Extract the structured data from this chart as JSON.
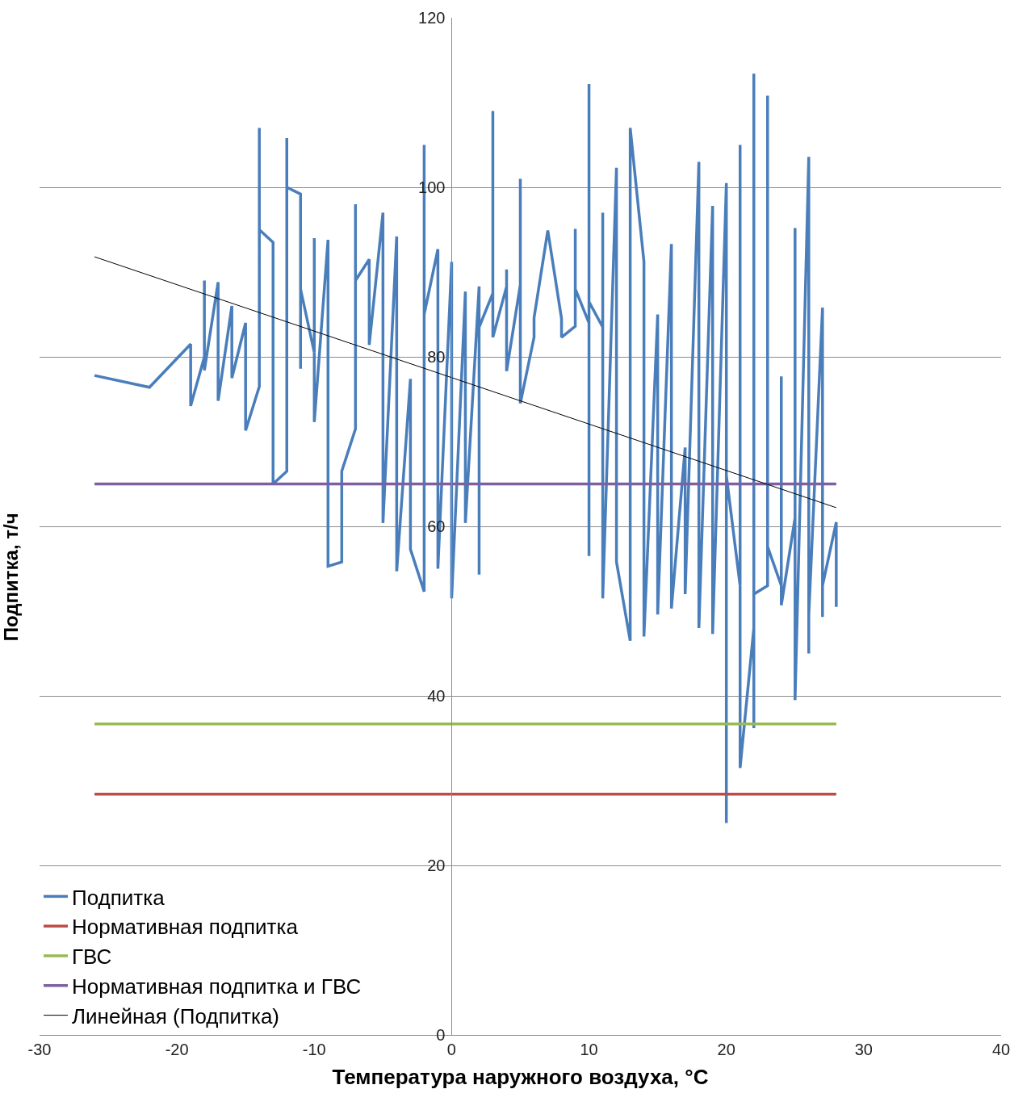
{
  "chart_data": {
    "type": "line",
    "xlabel": "Температура наружного воздуха, °С",
    "ylabel": "Подпитка, т/ч",
    "xlim": [
      -30,
      40
    ],
    "xticks": [
      -30,
      -20,
      -10,
      0,
      10,
      20,
      30,
      40
    ],
    "ylim": [
      0,
      120
    ],
    "yticks": [
      0,
      20,
      40,
      60,
      80,
      100,
      120
    ],
    "grid": "y",
    "legend": "bottom left",
    "marker": "none",
    "line_style": "solid",
    "series": [
      {
        "name": "Подпитка",
        "color": "#4a7ebb",
        "x": [
          -26,
          -22,
          -19,
          -19,
          -18,
          -18,
          -18,
          -17,
          -17,
          -16,
          -16,
          -15,
          -15,
          -14,
          -14,
          -14,
          -13,
          -13,
          -12,
          -12,
          -12,
          -11,
          -11,
          -11,
          -10,
          -10,
          -10,
          -9,
          -9,
          -8,
          -8,
          -7,
          -7,
          -7,
          -6,
          -6,
          -5,
          -5,
          -4,
          -4,
          -3,
          -3,
          -2,
          -2,
          -2,
          -1,
          -1,
          0,
          0,
          1,
          1,
          2,
          2,
          2,
          3,
          3,
          3,
          4,
          4,
          4,
          5,
          5,
          5,
          6,
          6,
          7,
          8,
          8,
          9,
          9,
          9,
          10,
          10,
          10,
          10,
          11,
          11,
          11,
          12,
          12,
          13,
          13,
          14,
          14,
          15,
          15,
          16,
          16,
          17,
          17,
          18,
          18,
          19,
          19,
          20,
          20,
          20,
          21,
          21,
          21,
          22,
          22,
          22,
          22,
          23,
          23,
          23,
          24,
          24,
          24,
          25,
          25,
          25,
          26,
          26,
          26,
          27,
          27,
          27,
          28,
          28
        ],
        "values": [
          77.8,
          76.4,
          81.5,
          74.2,
          80,
          89,
          78.4,
          88.8,
          74.8,
          86,
          77.5,
          84,
          71.3,
          76.5,
          107,
          95,
          93.5,
          65,
          66.5,
          105.8,
          100,
          99.2,
          78.6,
          88,
          80.5,
          94,
          72.3,
          93.8,
          55.3,
          55.8,
          66.5,
          71.5,
          98,
          89,
          91.5,
          81.4,
          97,
          60.4,
          94.2,
          54.7,
          77.4,
          57.3,
          52.3,
          105,
          85,
          92.7,
          55,
          91.2,
          51.5,
          87.7,
          60.4,
          88.3,
          54.3,
          83.5,
          87.5,
          109,
          82.3,
          88.3,
          90.3,
          78.3,
          88.5,
          101,
          74.5,
          82.3,
          84.6,
          94.9,
          84.5,
          82.3,
          83.6,
          95.1,
          88,
          84,
          56.5,
          112.2,
          86.5,
          83.5,
          97,
          51.5,
          102.3,
          55.8,
          46.5,
          107,
          91.2,
          47,
          85,
          49.6,
          93.3,
          50.3,
          69.3,
          52,
          103,
          48,
          97.8,
          47.3,
          100.5,
          25,
          66,
          53,
          105,
          31.5,
          48,
          113.4,
          36.2,
          52,
          53,
          110.8,
          57.6,
          53,
          77.7,
          50.7,
          61,
          95.2,
          39.5,
          103.6,
          45,
          49.5,
          85.8,
          49.3,
          53,
          60.5,
          50.5
        ]
      },
      {
        "name": "Нормативная подпитка",
        "color": "#be4b48",
        "x": [
          -26,
          28
        ],
        "values": [
          28.4,
          28.4
        ]
      },
      {
        "name": "ГВС",
        "color": "#98b954",
        "x": [
          -26,
          28
        ],
        "values": [
          36.7,
          36.7
        ]
      },
      {
        "name": "Нормативная подпитка и ГВС",
        "color": "#7d60a0",
        "x": [
          -26,
          28
        ],
        "values": [
          65,
          65
        ]
      },
      {
        "name": "Линейная (Подпитка)",
        "color": "#000000",
        "x": [
          -26,
          28
        ],
        "values": [
          91.8,
          62.2
        ],
        "type": "line"
      }
    ]
  }
}
